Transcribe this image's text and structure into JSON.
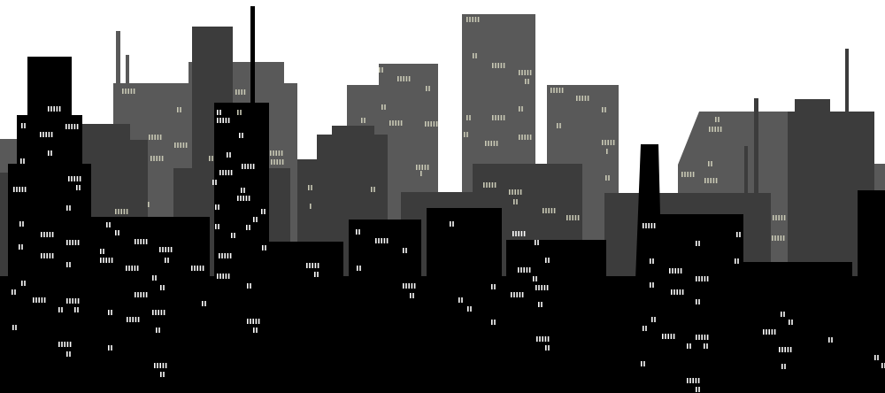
{
  "scene": {
    "description_tags": [
      "city-skyline",
      "night-windows",
      "silhouette"
    ],
    "colors": {
      "sky": "#ffffff",
      "far_buildings": "#595959",
      "mid_buildings": "#3c3c3c",
      "near_buildings": "#000000",
      "lit_window_near": "#ffffff",
      "lit_window_far": "#c8c8b4"
    }
  }
}
